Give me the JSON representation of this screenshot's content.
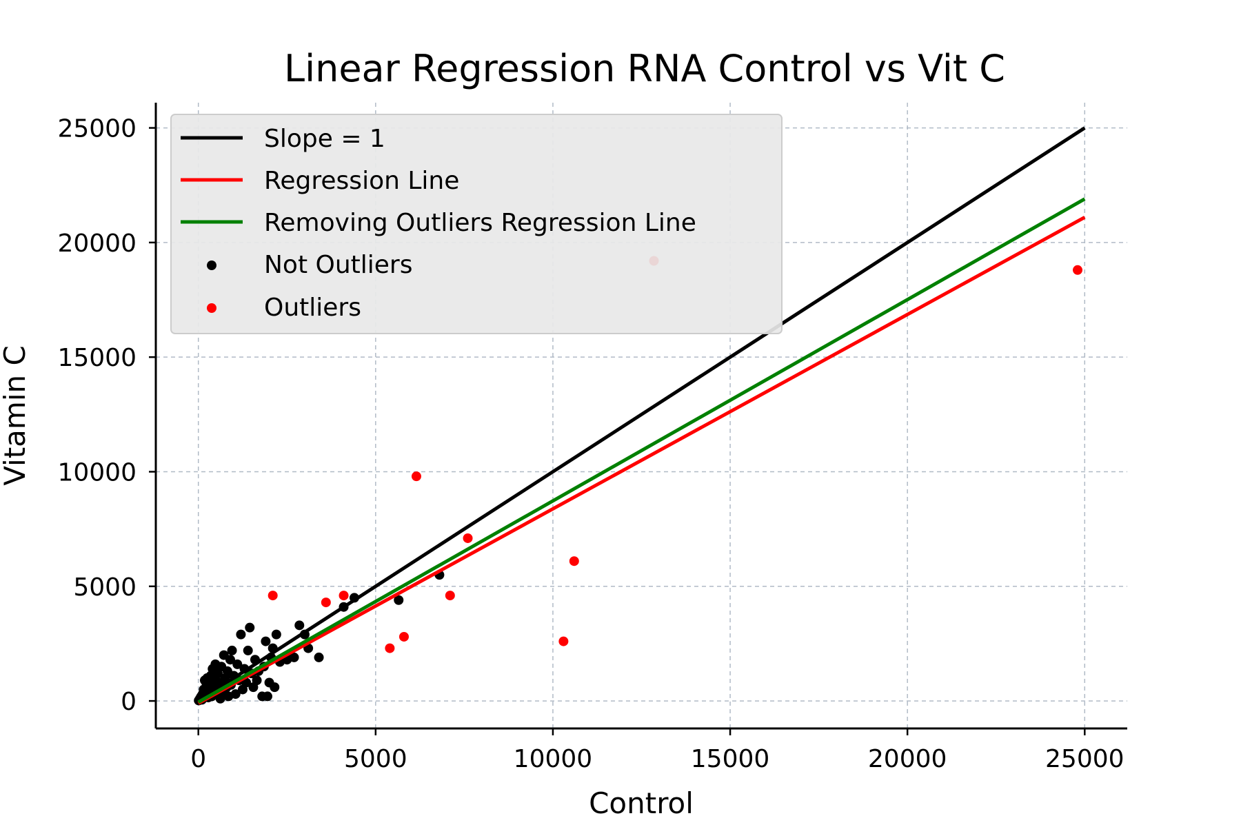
{
  "chart_data": {
    "type": "scatter",
    "title": "Linear Regression RNA Control vs Vit C",
    "xlabel": "Control",
    "ylabel": "Vitamin C",
    "xlim": [
      -1200,
      26200
    ],
    "ylim": [
      -1200,
      26100
    ],
    "xticks": [
      0,
      5000,
      10000,
      15000,
      20000,
      25000
    ],
    "yticks": [
      0,
      5000,
      10000,
      15000,
      20000,
      25000
    ],
    "grid": true,
    "legend_position": "top-left",
    "lines": [
      {
        "name": "Slope = 1",
        "color": "#000000",
        "x": [
          0,
          25000
        ],
        "y": [
          0,
          25000
        ]
      },
      {
        "name": "Regression Line",
        "color": "#ff0000",
        "x": [
          0,
          25000
        ],
        "y": [
          -100,
          21100
        ]
      },
      {
        "name": "Removing Outliers Regression Line",
        "color": "#008000",
        "x": [
          0,
          25000
        ],
        "y": [
          -50,
          21900
        ]
      }
    ],
    "scatter": [
      {
        "name": "Not Outliers",
        "color": "#000000",
        "points": [
          [
            10,
            20
          ],
          [
            30,
            60
          ],
          [
            50,
            120
          ],
          [
            80,
            200
          ],
          [
            100,
            50
          ],
          [
            120,
            300
          ],
          [
            150,
            500
          ],
          [
            180,
            900
          ],
          [
            200,
            250
          ],
          [
            220,
            800
          ],
          [
            250,
            1000
          ],
          [
            280,
            150
          ],
          [
            300,
            400
          ],
          [
            330,
            700
          ],
          [
            350,
            1100
          ],
          [
            380,
            200
          ],
          [
            400,
            1400
          ],
          [
            420,
            600
          ],
          [
            450,
            900
          ],
          [
            480,
            1600
          ],
          [
            500,
            300
          ],
          [
            550,
            1200
          ],
          [
            600,
            800
          ],
          [
            620,
            100
          ],
          [
            650,
            1500
          ],
          [
            700,
            400
          ],
          [
            720,
            2000
          ],
          [
            750,
            1000
          ],
          [
            800,
            600
          ],
          [
            820,
            1300
          ],
          [
            850,
            200
          ],
          [
            900,
            1800
          ],
          [
            920,
            700
          ],
          [
            950,
            2200
          ],
          [
            1000,
            1100
          ],
          [
            1050,
            300
          ],
          [
            1100,
            1600
          ],
          [
            1150,
            900
          ],
          [
            1200,
            2900
          ],
          [
            1250,
            500
          ],
          [
            1300,
            1400
          ],
          [
            1350,
            800
          ],
          [
            1400,
            2200
          ],
          [
            1450,
            3200
          ],
          [
            1500,
            1200
          ],
          [
            1550,
            600
          ],
          [
            1600,
            1800
          ],
          [
            1650,
            900
          ],
          [
            1700,
            1300
          ],
          [
            1800,
            200
          ],
          [
            1850,
            1500
          ],
          [
            1900,
            2600
          ],
          [
            1950,
            200
          ],
          [
            2000,
            800
          ],
          [
            2050,
            1900
          ],
          [
            2100,
            2300
          ],
          [
            2150,
            600
          ],
          [
            2200,
            2900
          ],
          [
            2300,
            1700
          ],
          [
            2500,
            1800
          ],
          [
            2600,
            2000
          ],
          [
            2700,
            1900
          ],
          [
            2850,
            3300
          ],
          [
            3000,
            2900
          ],
          [
            3100,
            2300
          ],
          [
            3400,
            1900
          ],
          [
            4100,
            4100
          ],
          [
            4400,
            4500
          ],
          [
            5650,
            4400
          ],
          [
            6800,
            5500
          ]
        ]
      },
      {
        "name": "Outliers",
        "color": "#ff0000",
        "points": [
          [
            2100,
            4600
          ],
          [
            3600,
            4300
          ],
          [
            4100,
            4600
          ],
          [
            5400,
            2300
          ],
          [
            5800,
            2800
          ],
          [
            6150,
            9800
          ],
          [
            7100,
            4600
          ],
          [
            7600,
            7100
          ],
          [
            10300,
            2600
          ],
          [
            10600,
            6100
          ],
          [
            12850,
            19200
          ],
          [
            24800,
            18800
          ]
        ]
      }
    ]
  }
}
